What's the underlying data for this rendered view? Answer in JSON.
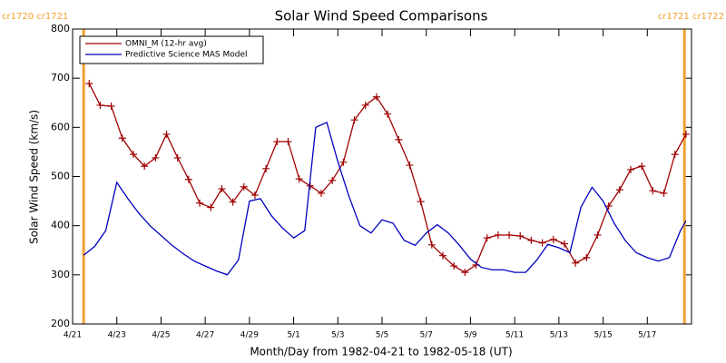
{
  "chart_data": {
    "type": "line",
    "title": "Solar Wind Speed Comparisons",
    "x_label": "Month/Day from 1982-04-21 to 1982-05-18 (UT)",
    "y_label": "Solar Wind Speed (km/s)",
    "xlim": [
      0,
      28
    ],
    "xticks": [
      {
        "value": 0,
        "label": "4/21"
      },
      {
        "value": 2,
        "label": "4/23"
      },
      {
        "value": 4,
        "label": "4/25"
      },
      {
        "value": 6,
        "label": "4/27"
      },
      {
        "value": 8,
        "label": "4/29"
      },
      {
        "value": 10,
        "label": "5/1"
      },
      {
        "value": 12,
        "label": "5/3"
      },
      {
        "value": 14,
        "label": "5/5"
      },
      {
        "value": 16,
        "label": "5/7"
      },
      {
        "value": 18,
        "label": "5/9"
      },
      {
        "value": 20,
        "label": "5/11"
      },
      {
        "value": 22,
        "label": "5/13"
      },
      {
        "value": 24,
        "label": "5/15"
      },
      {
        "value": 26,
        "label": "5/17"
      }
    ],
    "ylim": [
      200,
      800
    ],
    "yticks": [
      200,
      300,
      400,
      500,
      600,
      700,
      800
    ],
    "legend": "upper left",
    "markers": [
      {
        "x": 0.5,
        "label": "cr1720 cr1721",
        "color": "#f0a030"
      },
      {
        "x": 27.68,
        "label": "cr1721 cr1722",
        "color": "#f0a030"
      }
    ],
    "series": [
      {
        "name": "OMNI_M (12-hr avg)",
        "color": "#a00000",
        "marker": "plus",
        "x": [
          0.75,
          1.25,
          1.75,
          2.25,
          2.75,
          3.25,
          3.75,
          4.25,
          4.75,
          5.25,
          5.75,
          6.25,
          6.75,
          7.25,
          7.75,
          8.25,
          8.75,
          9.25,
          9.75,
          10.25,
          10.75,
          11.25,
          11.75,
          12.25,
          12.75,
          13.25,
          13.75,
          14.25,
          14.75,
          15.25,
          15.75,
          16.25,
          16.75,
          17.25,
          17.75,
          18.25,
          18.75,
          19.25,
          19.75,
          20.25,
          20.75,
          21.25,
          21.75,
          22.25,
          22.75,
          23.25,
          23.75,
          24.25,
          24.75,
          25.25,
          25.75,
          26.25,
          26.75,
          27.25,
          27.75
        ],
        "values": [
          689,
          645,
          643,
          578,
          545,
          521,
          538,
          586,
          538,
          494,
          446,
          437,
          475,
          448,
          479,
          462,
          516,
          571,
          571,
          495,
          481,
          466,
          492,
          529,
          615,
          645,
          662,
          627,
          575,
          523,
          449,
          361,
          339,
          318,
          305,
          320,
          375,
          381,
          381,
          379,
          370,
          365,
          372,
          363,
          324,
          335,
          381,
          440,
          473,
          514,
          521,
          471,
          466,
          545,
          586
        ]
      },
      {
        "name": "Predictive Science MAS Model",
        "color": "#0000c0",
        "x": [
          0.5,
          1,
          1.5,
          2,
          2.5,
          3,
          3.5,
          4,
          4.5,
          5,
          5.5,
          6,
          6.5,
          7,
          7.5,
          8,
          8.5,
          9,
          9.5,
          10,
          10.5,
          11,
          11.5,
          12,
          12.5,
          13,
          13.5,
          14,
          14.5,
          15,
          15.5,
          16,
          16.5,
          17,
          17.5,
          18,
          18.5,
          19,
          19.5,
          20,
          20.5,
          21,
          21.5,
          22,
          22.5,
          23,
          23.5,
          24,
          24.5,
          25,
          25.5,
          26,
          26.5,
          27,
          27.5,
          27.75
        ],
        "values": [
          340,
          358,
          390,
          488,
          455,
          425,
          400,
          380,
          360,
          343,
          328,
          318,
          308,
          300,
          330,
          450,
          455,
          420,
          395,
          375,
          390,
          600,
          610,
          530,
          460,
          400,
          385,
          412,
          405,
          370,
          360,
          385,
          402,
          385,
          360,
          332,
          315,
          310,
          310,
          305,
          305,
          330,
          362,
          355,
          345,
          438,
          478,
          450,
          405,
          370,
          345,
          335,
          328,
          335,
          390,
          410
        ]
      }
    ]
  }
}
